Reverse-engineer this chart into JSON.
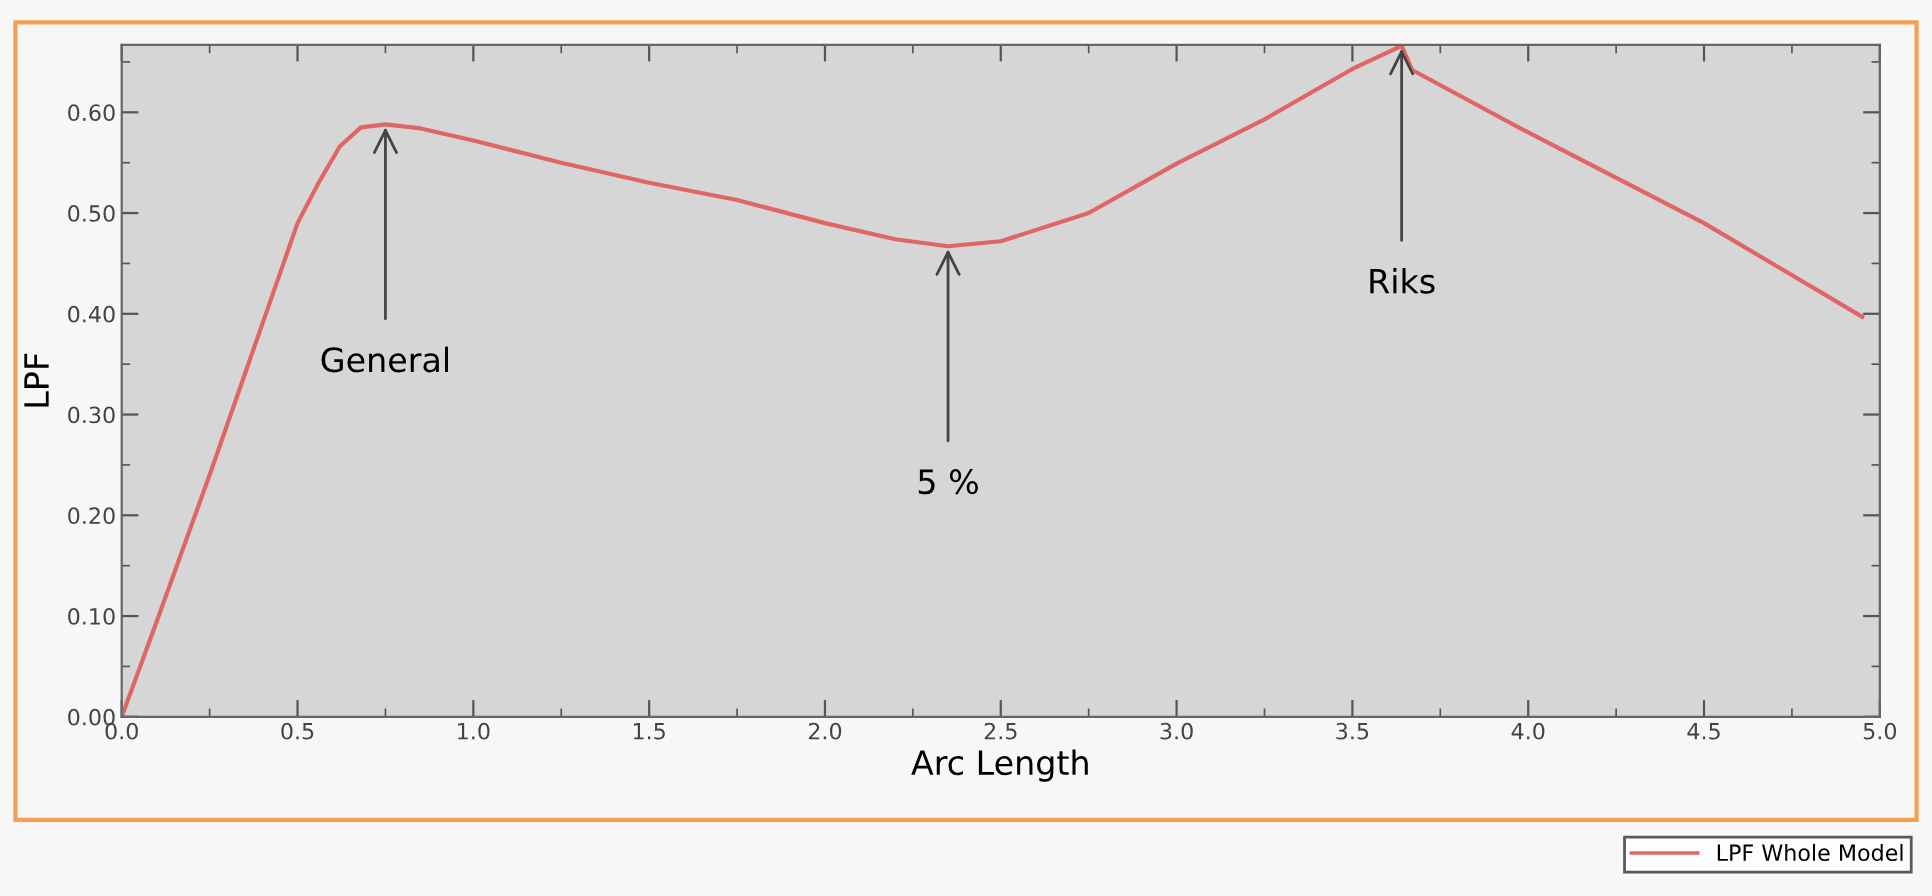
{
  "chart_data": {
    "type": "line",
    "xlabel": "Arc Length",
    "ylabel": "LPF",
    "xlim": [
      0,
      5.0
    ],
    "ylim": [
      0,
      0.667
    ],
    "xticks": [
      {
        "value": 0,
        "label": "0.0"
      },
      0.5,
      {
        "value": 1,
        "label": "1.0"
      },
      1.5,
      {
        "value": 2,
        "label": "2.0"
      },
      2.5,
      {
        "value": 3,
        "label": "3.0"
      },
      3.5,
      {
        "value": 4,
        "label": "4.0"
      },
      4.5,
      {
        "value": 5,
        "label": "5.0"
      }
    ],
    "yticks": [
      {
        "value": 0,
        "label": "0.00"
      },
      {
        "value": 0.1,
        "label": "0.10"
      },
      {
        "value": 0.2,
        "label": "0.20"
      },
      {
        "value": 0.3,
        "label": "0.30"
      },
      {
        "value": 0.4,
        "label": "0.40"
      },
      {
        "value": 0.5,
        "label": "0.50"
      },
      {
        "value": 0.6,
        "label": "0.60"
      }
    ],
    "grid": false,
    "legend": "bottom right",
    "marker": "none",
    "line_style": "solid",
    "series": [
      {
        "name": "LPF Whole Model",
        "color": "#e06666",
        "x": [
          0,
          0.1,
          0.25,
          0.4,
          0.5,
          0.56,
          0.62,
          0.68,
          0.75,
          0.85,
          1.0,
          1.25,
          1.5,
          1.75,
          2.0,
          2.2,
          2.35,
          2.5,
          2.75,
          3.0,
          3.25,
          3.5,
          3.64,
          3.67,
          4.0,
          4.5,
          4.95
        ],
        "values": [
          0,
          0.095,
          0.24,
          0.39,
          0.49,
          0.53,
          0.566,
          0.585,
          0.588,
          0.584,
          0.572,
          0.55,
          0.53,
          0.513,
          0.49,
          0.474,
          0.467,
          0.472,
          0.5,
          0.549,
          0.593,
          0.643,
          0.666,
          0.642,
          0.58,
          0.49,
          0.397
        ]
      }
    ],
    "annotations": [
      {
        "text": "General",
        "x": 0.75,
        "y": 0.588
      },
      {
        "text": "5 %",
        "x": 2.35,
        "y": 0.467
      },
      {
        "text": "Riks",
        "x": 3.64,
        "y": 0.666
      }
    ]
  }
}
